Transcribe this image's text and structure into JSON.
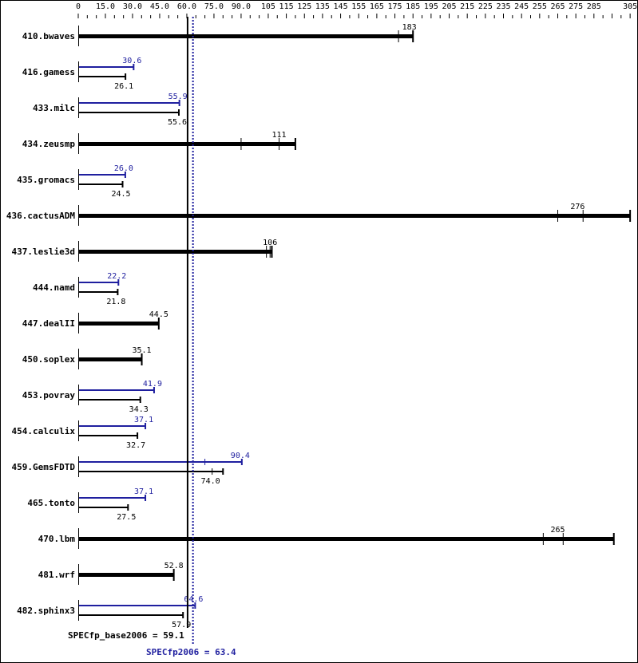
{
  "chart_data": {
    "type": "bar",
    "orientation": "horizontal",
    "title": "",
    "xlabel": "",
    "ylabel": "",
    "xlim": [
      0,
      305
    ],
    "x_tick_labels": [
      "0",
      "15.0",
      "30.0",
      "45.0",
      "60.0",
      "75.0",
      "90.0",
      "105",
      "115",
      "125",
      "135",
      "145",
      "155",
      "165",
      "175",
      "185",
      "195",
      "205",
      "215",
      "225",
      "235",
      "245",
      "255",
      "265",
      "275",
      "285",
      "305"
    ],
    "x_tick_values": [
      0,
      15,
      30,
      45,
      60,
      75,
      90,
      105,
      115,
      125,
      135,
      145,
      155,
      165,
      175,
      185,
      195,
      205,
      215,
      225,
      235,
      245,
      255,
      265,
      275,
      285,
      305
    ],
    "grid": false,
    "legend": [],
    "colors": {
      "base": "#000000",
      "peak": "#1f1f9f"
    },
    "categories": [
      "410.bwaves",
      "416.gamess",
      "433.milc",
      "434.zeusmp",
      "435.gromacs",
      "436.cactusADM",
      "437.leslie3d",
      "444.namd",
      "447.dealII",
      "450.soplex",
      "453.povray",
      "454.calculix",
      "459.GemsFDTD",
      "465.tonto",
      "470.lbm",
      "481.wrf",
      "482.sphinx3"
    ],
    "series": [
      {
        "name": "base",
        "values": [
          183,
          26.1,
          55.6,
          111,
          24.5,
          276,
          106,
          21.8,
          44.5,
          35.1,
          34.3,
          32.7,
          74.0,
          27.5,
          265,
          52.8,
          57.9
        ]
      },
      {
        "name": "peak",
        "values": [
          null,
          30.6,
          55.9,
          null,
          26.0,
          null,
          null,
          22.2,
          null,
          null,
          41.9,
          37.1,
          90.4,
          37.1,
          null,
          null,
          64.6
        ]
      }
    ],
    "bars": [
      {
        "name": "410.bwaves",
        "base": 183,
        "base_label": "183",
        "peak": null,
        "peak_label": null,
        "combined": true,
        "base_max": 185,
        "base_ticks": [
          177,
          185
        ]
      },
      {
        "name": "416.gamess",
        "base": 26.1,
        "base_label": "26.1",
        "peak": 30.6,
        "peak_label": "30.6",
        "combined": false
      },
      {
        "name": "433.milc",
        "base": 55.6,
        "base_label": "55.6",
        "peak": 55.9,
        "peak_label": "55.9",
        "combined": false
      },
      {
        "name": "434.zeusmp",
        "base": 111,
        "base_label": "111",
        "peak": null,
        "peak_label": null,
        "combined": true,
        "base_max": 120,
        "base_ticks": [
          90,
          111,
          120
        ]
      },
      {
        "name": "435.gromacs",
        "base": 24.5,
        "base_label": "24.5",
        "peak": 26.0,
        "peak_label": "26.0",
        "combined": false
      },
      {
        "name": "436.cactusADM",
        "base": 276,
        "base_label": "276",
        "peak": null,
        "peak_label": null,
        "combined": true,
        "base_max": 305,
        "base_ticks": [
          265,
          279,
          305
        ]
      },
      {
        "name": "437.leslie3d",
        "base": 106,
        "base_label": "106",
        "peak": null,
        "peak_label": null,
        "combined": true,
        "base_max": 107,
        "base_ticks": [
          104,
          106,
          107
        ]
      },
      {
        "name": "444.namd",
        "base": 21.8,
        "base_label": "21.8",
        "peak": 22.2,
        "peak_label": "22.2",
        "combined": false
      },
      {
        "name": "447.dealII",
        "base": 44.5,
        "base_label": "44.5",
        "peak": null,
        "peak_label": null,
        "combined": true
      },
      {
        "name": "450.soplex",
        "base": 35.1,
        "base_label": "35.1",
        "peak": null,
        "peak_label": null,
        "combined": true
      },
      {
        "name": "453.povray",
        "base": 34.3,
        "base_label": "34.3",
        "peak": 41.9,
        "peak_label": "41.9",
        "combined": false
      },
      {
        "name": "454.calculix",
        "base": 32.7,
        "base_label": "32.7",
        "peak": 37.1,
        "peak_label": "37.1",
        "combined": false
      },
      {
        "name": "459.GemsFDTD",
        "base": 74.0,
        "base_label": "74.0",
        "peak": 90.4,
        "peak_label": "90.4",
        "combined": false,
        "peak_ticks": [
          70,
          90.4
        ],
        "base_ticks": [
          74,
          80
        ]
      },
      {
        "name": "465.tonto",
        "base": 27.5,
        "base_label": "27.5",
        "peak": 37.1,
        "peak_label": "37.1",
        "combined": false
      },
      {
        "name": "470.lbm",
        "base": 265,
        "base_label": "265",
        "peak": null,
        "peak_label": null,
        "combined": true,
        "base_max": 296,
        "base_ticks": [
          257,
          268,
          296
        ]
      },
      {
        "name": "481.wrf",
        "base": 52.8,
        "base_label": "52.8",
        "peak": null,
        "peak_label": null,
        "combined": true
      },
      {
        "name": "482.sphinx3",
        "base": 57.9,
        "base_label": "57.9",
        "peak": 64.6,
        "peak_label": "64.6",
        "combined": false
      }
    ],
    "reference_lines": [
      {
        "name": "SPECfp_base2006",
        "value": 59.1,
        "style": "solid",
        "color": "#000000"
      },
      {
        "name": "SPECfp2006",
        "value": 63.4,
        "style": "dotted",
        "color": "#1f1f9f"
      }
    ],
    "annotations": [
      "SPECfp_base2006 = 59.1",
      "SPECfp2006 = 63.4"
    ]
  },
  "summary": {
    "base_text": "SPECfp_base2006 = 59.1",
    "peak_text": "SPECfp2006 = 63.4"
  }
}
